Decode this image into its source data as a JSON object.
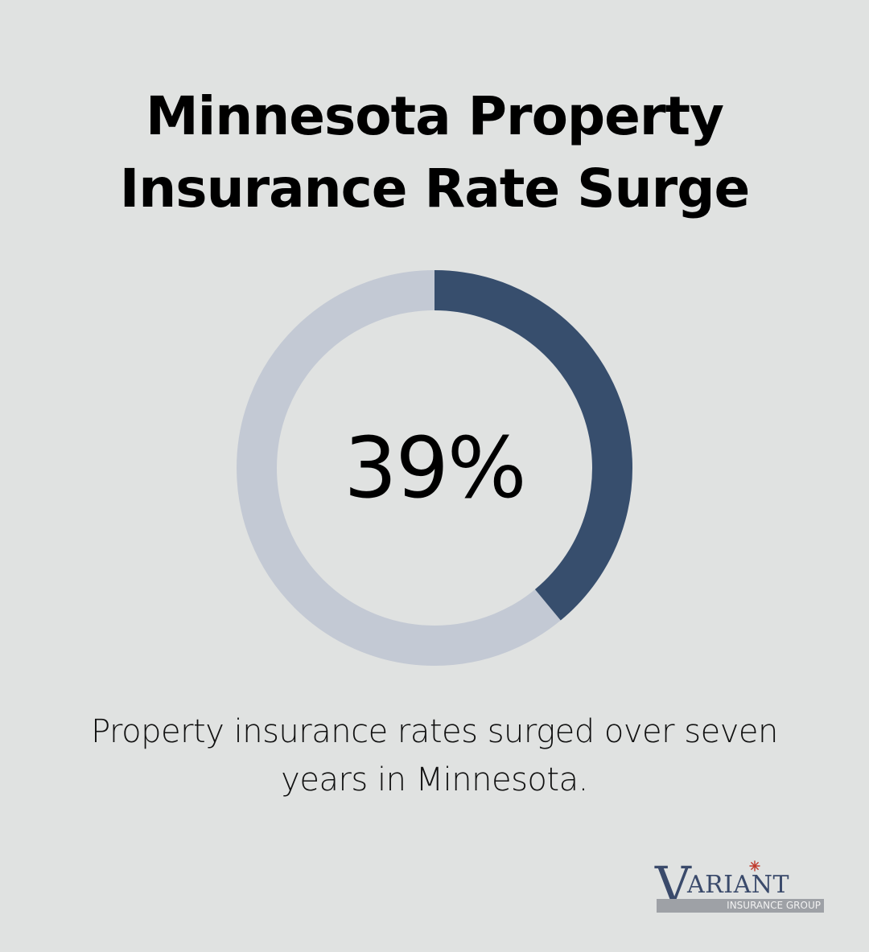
{
  "title": {
    "line1": "Minnesota Property",
    "line2": "Insurance Rate Surge"
  },
  "chart_data": {
    "type": "pie",
    "variant": "donut",
    "values": [
      39,
      61
    ],
    "center_label": "39%",
    "colors": {
      "filled": "#374e6d",
      "track": "#c3c9d4"
    }
  },
  "caption": {
    "line1": "Property insurance rates surged over seven",
    "line2": "years in Minnesota."
  },
  "logo": {
    "v": "V",
    "word": "ARIANT",
    "subtitle": "INSURANCE GROUP",
    "star_color": "#c0392b",
    "brand_color": "#3a4a6b"
  },
  "background": "#e0e2e1"
}
